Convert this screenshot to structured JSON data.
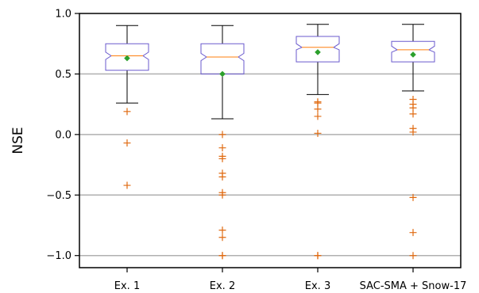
{
  "chart_data": {
    "type": "box",
    "title": "",
    "xlabel": "",
    "ylabel": "NSE",
    "ylim": [
      -1.1,
      1.0
    ],
    "yticks": [
      1.0,
      0.5,
      0.0,
      -0.5,
      -1.0
    ],
    "ytick_labels": [
      "1.0",
      "0.5",
      "0.0",
      "−0.5",
      "−1.0"
    ],
    "grid": {
      "axis": "y",
      "values": [
        0.5,
        0.0,
        -0.5,
        -1.0
      ]
    },
    "notched": true,
    "categories": [
      "Ex. 1",
      "Ex. 2",
      "Ex. 3",
      "SAC-SMA + Snow-17"
    ],
    "boxes": [
      {
        "label": "Ex. 1",
        "whisker_low": 0.26,
        "q1": 0.53,
        "median": 0.65,
        "q3": 0.75,
        "whisker_high": 0.9,
        "notch_low": 0.62,
        "notch_high": 0.68,
        "mean": 0.63,
        "outliers": [
          0.19,
          -0.07,
          -0.42
        ]
      },
      {
        "label": "Ex. 2",
        "whisker_low": 0.13,
        "q1": 0.5,
        "median": 0.64,
        "q3": 0.75,
        "whisker_high": 0.9,
        "notch_low": 0.61,
        "notch_high": 0.67,
        "mean": 0.5,
        "outliers": [
          0.0,
          -0.11,
          -0.18,
          -0.2,
          -0.32,
          -0.35,
          -0.48,
          -0.5,
          -0.79,
          -0.85,
          -1.0,
          -1.0
        ]
      },
      {
        "label": "Ex. 3",
        "whisker_low": 0.33,
        "q1": 0.6,
        "median": 0.72,
        "q3": 0.81,
        "whisker_high": 0.91,
        "notch_low": 0.7,
        "notch_high": 0.75,
        "mean": 0.68,
        "outliers": [
          0.27,
          0.26,
          0.21,
          0.15,
          0.01,
          -1.0,
          -1.0
        ]
      },
      {
        "label": "SAC-SMA + Snow-17",
        "whisker_low": 0.36,
        "q1": 0.6,
        "median": 0.7,
        "q3": 0.77,
        "whisker_high": 0.91,
        "notch_low": 0.68,
        "notch_high": 0.73,
        "mean": 0.66,
        "outliers": [
          0.29,
          0.25,
          0.22,
          0.17,
          0.05,
          0.02,
          -0.52,
          -0.81,
          -1.0
        ]
      }
    ],
    "colors": {
      "box_edge": "#6a5acd",
      "median": "#ff7f0e",
      "mean_marker": "#2ca02c",
      "outlier": "#e06a10",
      "whisker": "#000000",
      "grid": "#b0b0b0"
    }
  }
}
